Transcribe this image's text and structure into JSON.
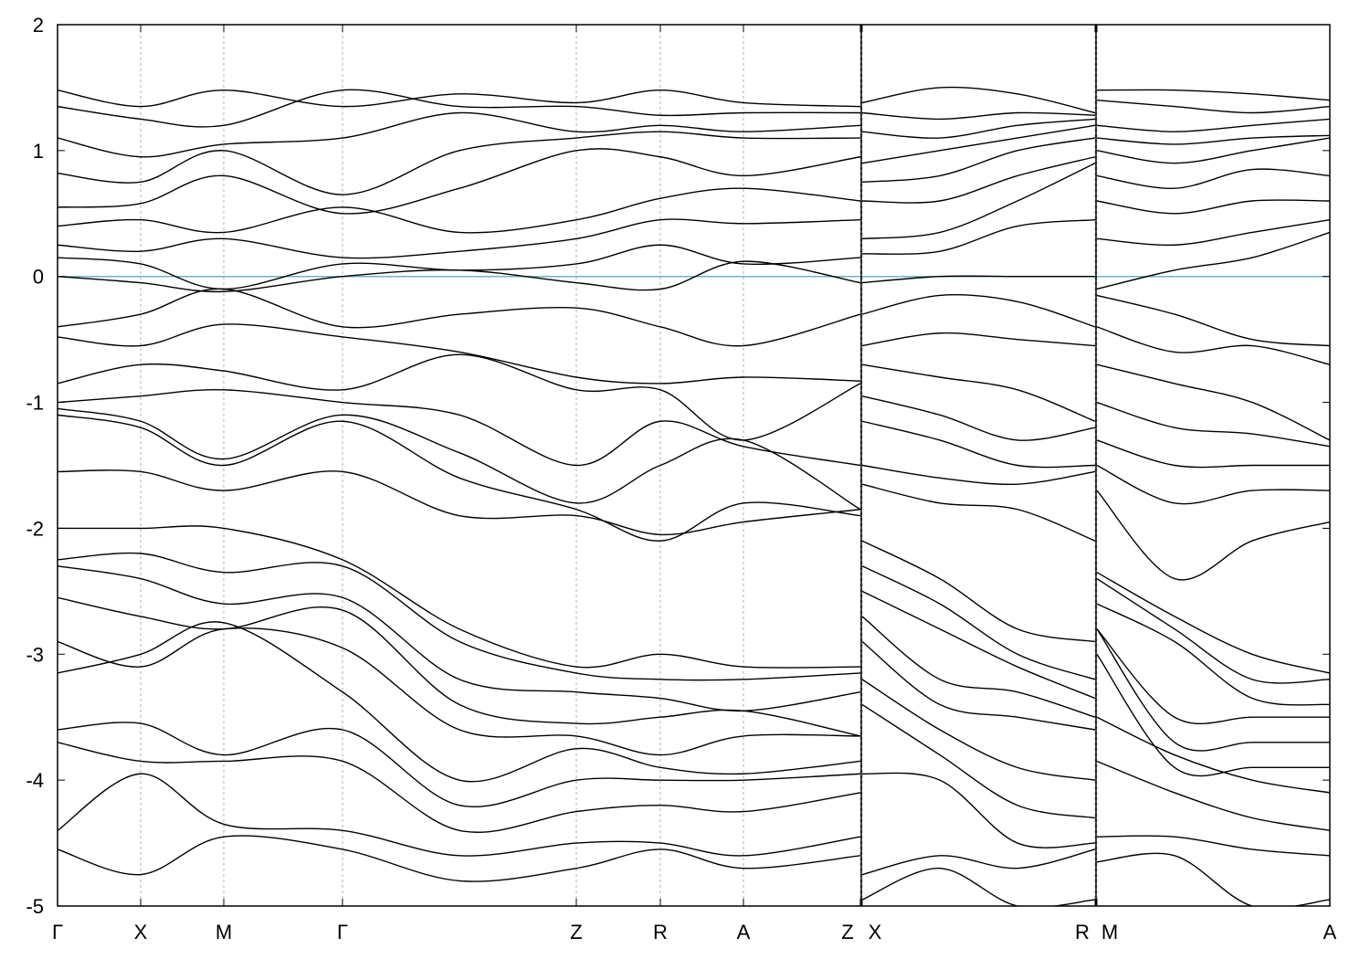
{
  "chart_data": {
    "type": "line",
    "x": [
      0,
      0.91,
      1.82,
      3.12,
      4.4,
      5.68,
      6.6,
      7.51,
      8.79,
      8.8,
      8.81,
      9.66,
      10.51,
      11.36,
      11.37,
      11.38,
      12.23,
      13.08,
      13.93
    ],
    "xlim": [
      0,
      13.93
    ],
    "xticks": [
      {
        "value": 0,
        "label": "Γ"
      },
      {
        "value": 0.91,
        "label": "X"
      },
      {
        "value": 1.82,
        "label": "M"
      },
      {
        "value": 3.12,
        "label": "Γ"
      },
      {
        "value": 5.68,
        "label": "Z"
      },
      {
        "value": 6.6,
        "label": "R"
      },
      {
        "value": 7.51,
        "label": "A"
      },
      {
        "value": 8.79,
        "label": "Z"
      },
      {
        "value": 8.81,
        "label": "X"
      },
      {
        "value": 11.36,
        "label": "R"
      },
      {
        "value": 11.38,
        "label": "M"
      },
      {
        "value": 13.93,
        "label": "A"
      }
    ],
    "ylim": [
      -5,
      2
    ],
    "yticks": [
      -5,
      -4,
      -3,
      -2,
      -1,
      0,
      1,
      2
    ],
    "xgrid": true,
    "line_color": "#000000",
    "reference_line": {
      "value": 0,
      "color": "#6bb3c9"
    },
    "series": [
      {
        "values": [
          1.48,
          1.35,
          1.48,
          1.35,
          1.45,
          1.38,
          1.48,
          1.38,
          1.35,
          null,
          1.38,
          1.5,
          1.45,
          1.3,
          null,
          1.48,
          1.48,
          1.45,
          1.4
        ]
      },
      {
        "values": [
          1.35,
          1.25,
          1.2,
          1.48,
          1.35,
          1.35,
          1.28,
          1.3,
          1.3,
          null,
          1.3,
          1.25,
          1.3,
          1.28,
          null,
          1.4,
          1.35,
          1.3,
          1.35
        ]
      },
      {
        "values": [
          1.1,
          0.95,
          1.05,
          1.1,
          1.3,
          1.15,
          1.2,
          1.15,
          1.2,
          null,
          1.15,
          1.1,
          1.2,
          1.25,
          null,
          1.2,
          1.15,
          1.2,
          1.25
        ]
      },
      {
        "values": [
          0.82,
          0.75,
          1.0,
          0.65,
          1.0,
          1.1,
          1.15,
          1.1,
          1.1,
          null,
          0.9,
          1.0,
          1.1,
          1.2,
          null,
          1.1,
          1.05,
          1.1,
          1.12
        ]
      },
      {
        "values": [
          0.55,
          0.58,
          0.8,
          0.5,
          0.7,
          1.0,
          0.95,
          0.8,
          0.95,
          null,
          0.75,
          0.8,
          1.0,
          1.1,
          null,
          1.0,
          0.9,
          1.0,
          1.1
        ]
      },
      {
        "values": [
          0.4,
          0.45,
          0.35,
          0.55,
          0.35,
          0.45,
          0.62,
          0.7,
          0.6,
          null,
          0.6,
          0.6,
          0.8,
          0.95,
          null,
          0.8,
          0.7,
          0.85,
          0.8
        ]
      },
      {
        "values": [
          0.25,
          0.2,
          0.3,
          0.15,
          0.2,
          0.3,
          0.45,
          0.42,
          0.45,
          null,
          0.3,
          0.35,
          0.6,
          0.9,
          null,
          0.6,
          0.5,
          0.6,
          0.6
        ]
      },
      {
        "values": [
          0.15,
          0.1,
          -0.1,
          0.1,
          0.05,
          0.1,
          0.25,
          0.1,
          0.15,
          null,
          0.18,
          0.2,
          0.4,
          0.45,
          null,
          0.3,
          0.25,
          0.35,
          0.45
        ]
      },
      {
        "values": [
          0.0,
          -0.05,
          -0.12,
          0.0,
          0.05,
          -0.05,
          -0.1,
          0.12,
          -0.05,
          null,
          -0.05,
          0.0,
          0.0,
          0.0,
          null,
          -0.1,
          0.05,
          0.15,
          0.35
        ]
      },
      {
        "values": [
          -0.4,
          -0.3,
          -0.1,
          -0.4,
          -0.3,
          -0.25,
          -0.4,
          -0.55,
          -0.3,
          null,
          -0.3,
          -0.15,
          -0.2,
          -0.4,
          null,
          -0.15,
          -0.3,
          -0.5,
          -0.55
        ]
      },
      {
        "values": [
          -0.48,
          -0.55,
          -0.38,
          -0.48,
          -0.6,
          -0.8,
          -0.85,
          -0.8,
          -0.83,
          null,
          -0.55,
          -0.45,
          -0.5,
          -0.55,
          null,
          -0.4,
          -0.6,
          -0.55,
          -0.7
        ]
      },
      {
        "values": [
          -0.85,
          -0.7,
          -0.75,
          -0.9,
          -0.62,
          -0.9,
          -0.9,
          -1.3,
          -0.85,
          null,
          -0.7,
          -0.8,
          -0.9,
          -1.15,
          null,
          -0.7,
          -0.85,
          -1.0,
          -1.3
        ]
      },
      {
        "values": [
          -1.0,
          -0.95,
          -0.9,
          -1.0,
          -1.1,
          -1.5,
          -1.15,
          -1.35,
          -1.5,
          null,
          -0.95,
          -1.1,
          -1.3,
          -1.2,
          null,
          -1.0,
          -1.2,
          -1.25,
          -1.35
        ]
      },
      {
        "values": [
          -1.05,
          -1.15,
          -1.45,
          -1.1,
          -1.4,
          -1.8,
          -1.5,
          -1.3,
          -1.85,
          null,
          -1.15,
          -1.3,
          -1.5,
          -1.5,
          null,
          -1.3,
          -1.5,
          -1.5,
          -1.5
        ]
      },
      {
        "values": [
          -1.1,
          -1.2,
          -1.5,
          -1.15,
          -1.6,
          -1.85,
          -2.1,
          -1.8,
          -1.9,
          null,
          -1.5,
          -1.6,
          -1.65,
          -1.55,
          null,
          -1.5,
          -1.8,
          -1.7,
          -1.7
        ]
      },
      {
        "values": [
          -1.55,
          -1.55,
          -1.7,
          -1.55,
          -1.9,
          -1.9,
          -2.05,
          -1.95,
          -1.85,
          null,
          -1.65,
          -1.8,
          -1.85,
          -2.1,
          null,
          -1.7,
          -2.4,
          -2.1,
          -1.95
        ]
      },
      {
        "values": [
          -2.0,
          -2.0,
          -2.0,
          -2.25,
          -2.8,
          -3.1,
          -3.0,
          -3.1,
          -3.1,
          null,
          -2.1,
          -2.4,
          -2.8,
          -2.9,
          null,
          -2.35,
          -2.7,
          -3.0,
          -3.15
        ]
      },
      {
        "values": [
          -2.25,
          -2.2,
          -2.35,
          -2.3,
          -2.9,
          -3.15,
          -3.2,
          -3.2,
          -3.15,
          null,
          -2.3,
          -2.6,
          -3.0,
          -3.2,
          null,
          -2.4,
          -2.8,
          -3.2,
          -3.2
        ]
      },
      {
        "values": [
          -2.3,
          -2.4,
          -2.6,
          -2.55,
          -3.2,
          -3.3,
          -3.35,
          -3.45,
          -3.3,
          null,
          -2.5,
          -2.8,
          -3.1,
          -3.35,
          null,
          -2.6,
          -2.9,
          -3.35,
          -3.4
        ]
      },
      {
        "values": [
          -2.55,
          -2.7,
          -2.8,
          -2.65,
          -3.4,
          -3.55,
          -3.5,
          -3.45,
          -3.65,
          null,
          -2.7,
          -3.2,
          -3.3,
          -3.5,
          null,
          -2.8,
          -3.5,
          -3.5,
          -3.5
        ]
      },
      {
        "values": [
          -2.9,
          -3.1,
          -2.8,
          -2.95,
          -3.6,
          -3.65,
          -3.8,
          -3.65,
          -3.65,
          null,
          -2.9,
          -3.4,
          -3.5,
          -3.6,
          null,
          -2.8,
          -3.7,
          -3.7,
          -3.7
        ]
      },
      {
        "values": [
          -3.15,
          -3.0,
          -2.75,
          -3.3,
          -4.0,
          -3.75,
          -3.9,
          -3.95,
          -3.85,
          null,
          -3.2,
          -3.6,
          -3.9,
          -4.0,
          null,
          -3.0,
          -3.9,
          -3.9,
          -3.9
        ]
      },
      {
        "values": [
          -3.6,
          -3.55,
          -3.8,
          -3.6,
          -4.2,
          -4.0,
          -4.0,
          -4.0,
          -3.95,
          null,
          -3.4,
          -3.8,
          -4.2,
          -4.3,
          null,
          -3.5,
          -3.8,
          -4.0,
          -4.1
        ]
      },
      {
        "values": [
          -3.7,
          -3.85,
          -3.85,
          -3.85,
          -4.4,
          -4.25,
          -4.2,
          -4.25,
          -4.1,
          null,
          -3.95,
          -4.0,
          -4.5,
          -4.5,
          null,
          -3.85,
          -4.1,
          -4.3,
          -4.4
        ]
      },
      {
        "values": [
          -4.4,
          -3.95,
          -4.35,
          -4.4,
          -4.6,
          -4.5,
          -4.5,
          -4.6,
          -4.45,
          null,
          -4.75,
          -4.6,
          -4.7,
          -4.55,
          null,
          -4.45,
          -4.45,
          -4.55,
          -4.6
        ]
      },
      {
        "values": [
          -4.55,
          -4.75,
          -4.45,
          -4.55,
          -4.8,
          -4.7,
          -4.55,
          -4.7,
          -4.6,
          null,
          -4.95,
          -4.7,
          -5.0,
          -4.95,
          null,
          -4.65,
          -4.6,
          -5.0,
          -4.95
        ]
      }
    ]
  }
}
